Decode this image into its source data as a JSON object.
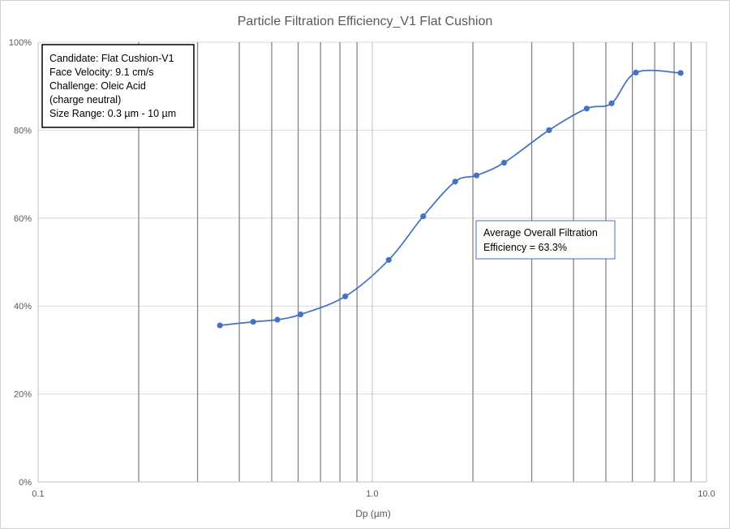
{
  "chart_data": {
    "type": "line",
    "title": "Particle Filtration Efficiency_V1 Flat Cushion",
    "xlabel": "Dp (µm)",
    "ylabel": "",
    "x_scale": "log",
    "xlim": [
      0.1,
      10.0
    ],
    "ylim": [
      0,
      100
    ],
    "x_ticks": [
      "0.1",
      "1.0",
      "10.0"
    ],
    "y_ticks": [
      "0%",
      "20%",
      "40%",
      "60%",
      "80%",
      "100%"
    ],
    "grid": {
      "x_major_minor": true,
      "y_major": true
    },
    "series": [
      {
        "color": "#4472c4",
        "x": [
          0.35,
          0.44,
          0.52,
          0.61,
          0.83,
          1.12,
          1.42,
          1.77,
          2.05,
          2.48,
          3.38,
          4.38,
          5.2,
          6.15,
          8.37
        ],
        "y": [
          35.6,
          36.4,
          36.9,
          38.1,
          42.2,
          50.5,
          60.4,
          68.3,
          69.7,
          72.6,
          80.0,
          84.9,
          86.1,
          93.1,
          93.0
        ]
      }
    ],
    "annotations": {
      "info_box": [
        "Candidate: Flat Cushion-V1",
        "Face Velocity: 9.1 cm/s",
        "Challenge: Oleic Acid",
        "(charge neutral)",
        "Size Range: 0.3 µm - 10 µm"
      ],
      "average_box": [
        "Average Overall Filtration",
        "Efficiency = 63.3%"
      ]
    }
  }
}
